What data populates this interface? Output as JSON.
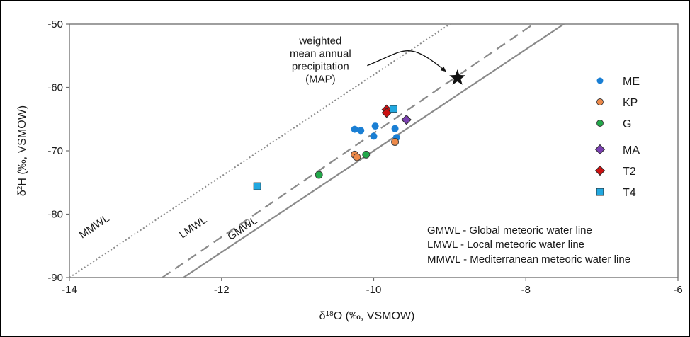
{
  "chart_data": {
    "type": "scatter",
    "xlabel_main": "δ",
    "xlabel_sup": "18",
    "xlabel_rest": "O (‰, VSMOW)",
    "ylabel_main": "δ",
    "ylabel_sup": "2",
    "ylabel_rest": "H (‰, VSMOW)",
    "xlim": [
      -14,
      -6
    ],
    "ylim": [
      -90,
      -50
    ],
    "x_ticks": [
      -14,
      -12,
      -10,
      -8,
      -6
    ],
    "y_ticks": [
      -50,
      -60,
      -70,
      -80,
      -90
    ],
    "x_tick_labels": [
      "-14",
      "-12",
      "-10",
      "-8",
      "-6"
    ],
    "y_tick_labels": [
      "-50",
      "-60",
      "-70",
      "-80",
      "-90"
    ],
    "grid": false,
    "legend_position": "right",
    "series": [
      {
        "name": "ME",
        "marker": "circle",
        "color": "#1a7fd4",
        "points": [
          [
            -10.25,
            -66.6
          ],
          [
            -10.17,
            -66.8
          ],
          [
            -9.98,
            -66.1
          ],
          [
            -10.0,
            -67.7
          ],
          [
            -9.72,
            -66.5
          ],
          [
            -9.7,
            -67.9
          ]
        ]
      },
      {
        "name": "KP",
        "marker": "circle",
        "color": "#ee8a4a",
        "points": [
          [
            -10.25,
            -70.6
          ],
          [
            -10.22,
            -71.0
          ],
          [
            -9.72,
            -68.6
          ]
        ]
      },
      {
        "name": "G",
        "marker": "circle",
        "color": "#22a84a",
        "points": [
          [
            -10.72,
            -73.8
          ],
          [
            -10.1,
            -70.6
          ]
        ]
      },
      {
        "name": "MA",
        "marker": "diamond",
        "color": "#7a3fb0",
        "points": [
          [
            -9.57,
            -65.1
          ]
        ]
      },
      {
        "name": "T2",
        "marker": "diamond",
        "color": "#cc1111",
        "points": [
          [
            -9.83,
            -63.5
          ],
          [
            -9.83,
            -64.0
          ]
        ]
      },
      {
        "name": "T4",
        "marker": "square",
        "color": "#22a8e0",
        "points": [
          [
            -11.53,
            -75.6
          ],
          [
            -9.74,
            -63.4
          ]
        ]
      }
    ],
    "lines": [
      {
        "name": "MMWL",
        "label": "MMWL",
        "style": "dotted",
        "color": "#8a8a8a",
        "start": [
          -14.0,
          -90.0
        ],
        "end": [
          -9.0,
          -50.0
        ],
        "label_at": [
          -13.65,
          -82.4
        ]
      },
      {
        "name": "LMWL",
        "label": "LMWL",
        "style": "dashed",
        "color": "#8a8a8a",
        "start": [
          -12.78,
          -90.0
        ],
        "end": [
          -7.9,
          -50.0
        ],
        "label_at": [
          -12.35,
          -82.5
        ]
      },
      {
        "name": "GMWL",
        "label": "GMWL",
        "style": "solid",
        "color": "#8a8a8a",
        "start": [
          -12.5,
          -90.0
        ],
        "end": [
          -7.5,
          -50.0
        ],
        "label_at": [
          -11.7,
          -82.7
        ]
      }
    ],
    "map_point": {
      "x": -8.9,
      "y": -58.5,
      "marker": "star",
      "color": "#111111",
      "label_lines": [
        "weighted",
        "mean annual",
        "precipitation",
        "(MAP)"
      ],
      "label_at": [
        -10.7,
        -53.2
      ]
    },
    "notes": [
      "GMWL - Global meteoric water line",
      "LMWL - Local meteoric water line",
      "MMWL - Mediterranean meteoric water line"
    ]
  }
}
